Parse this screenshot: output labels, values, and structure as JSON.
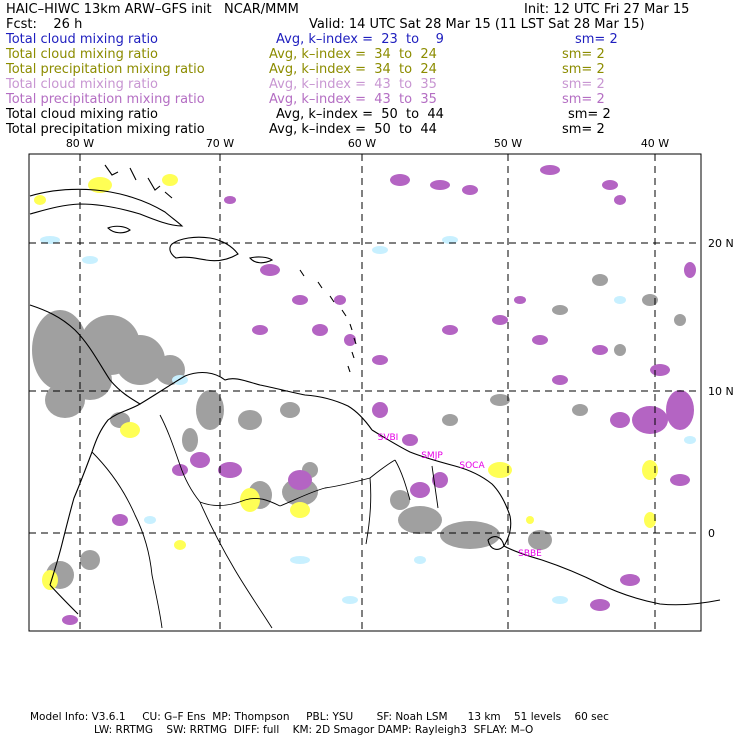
{
  "header": {
    "title": "HAIC–HIWC 13km ARW–GFS init   NCAR/MMM",
    "init": "Init: 12 UTC Fri 27 Mar 15",
    "fcst": "Fcst:    26 h",
    "valid": "Valid: 14 UTC Sat 28 Mar 15 (11 LST Sat 28 Mar 15)"
  },
  "fields": [
    {
      "name": "Total cloud mixing ratio",
      "avg": "Avg, k–index =  23  to    9",
      "sm": "sm= 2",
      "color": "#1e1ebe"
    },
    {
      "name": "Total cloud mixing ratio",
      "avg": "Avg, k–index =  34  to  24",
      "sm": "sm= 2",
      "color": "#8c8c00"
    },
    {
      "name": "Total precipitation mixing ratio",
      "avg": "Avg, k–index =  34  to  24",
      "sm": "sm= 2",
      "color": "#8c8c00"
    },
    {
      "name": "Total cloud mixing ratio",
      "avg": "Avg, k–index =  43  to  35",
      "sm": "sm= 2",
      "color": "#c896d2"
    },
    {
      "name": "Total precipitation mixing ratio",
      "avg": "Avg, k–index =  43  to  35",
      "sm": "sm= 2",
      "color": "#b46ec3"
    },
    {
      "name": "Total cloud mixing ratio",
      "avg": "Avg, k–index =  50  to  44",
      "sm": "sm= 2",
      "color": "#000000"
    },
    {
      "name": "Total precipitation mixing ratio",
      "avg": "Avg, k–index =  50  to  44",
      "sm": "sm= 2",
      "color": "#000000"
    }
  ],
  "map": {
    "lon_labels": [
      "80 W",
      "70 W",
      "60 W",
      "50 W",
      "40 W"
    ],
    "lat_labels": [
      "20 N",
      "10 N",
      "0"
    ],
    "station_labels": [
      "SVBI",
      "SMJP",
      "SOCA",
      "SBBE"
    ],
    "colors": {
      "grey": "#a0a0a0",
      "purple": "#b464c3",
      "yellow": "#ffff55",
      "cyan": "#c8f0ff",
      "magenta": "#e600e6"
    }
  },
  "footer": {
    "line1": "Model Info: V3.6.1     CU: G–F Ens  MP: Thompson     PBL: YSU       SF: Noah LSM      13 km    51 levels    60 sec",
    "line2": "LW: RRTMG    SW: RRTMG  DIFF: full    KM: 2D Smagor DAMP: Rayleigh3  SFLAY: M–O"
  }
}
